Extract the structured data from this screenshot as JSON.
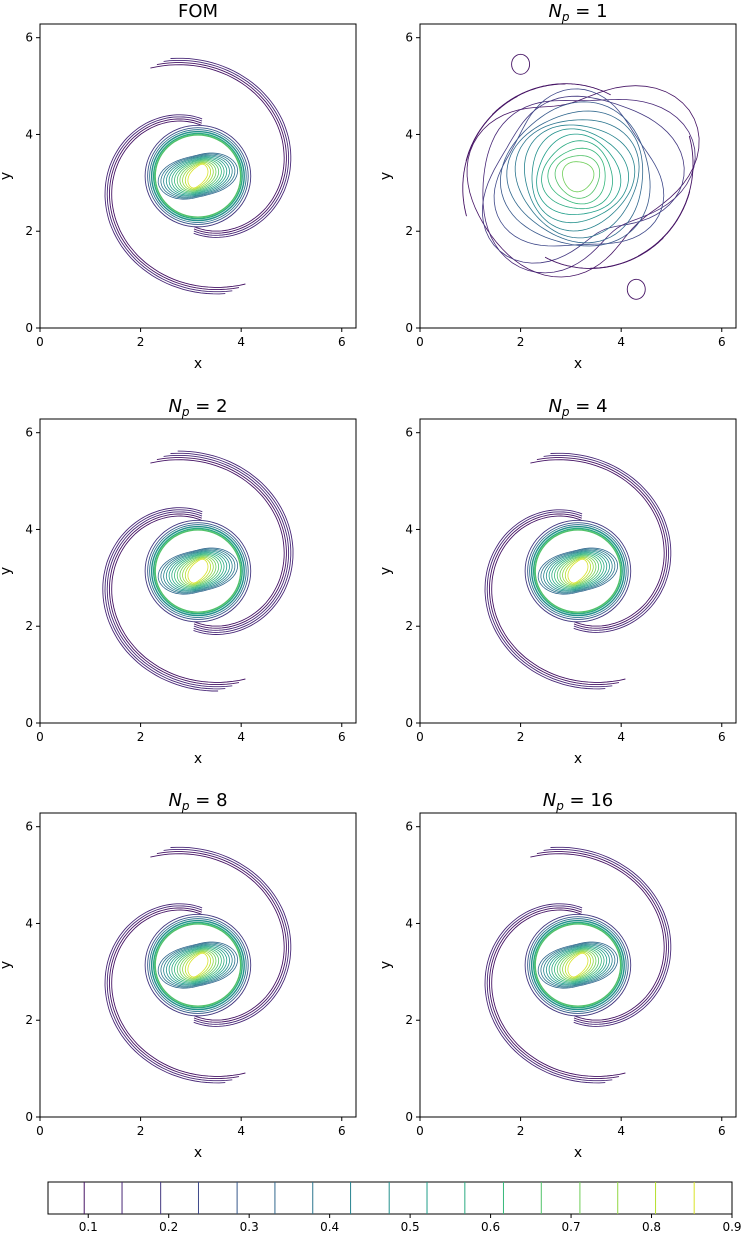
{
  "chart_data": {
    "type": "contour",
    "panels": [
      {
        "title": "FOM",
        "title_parts": null,
        "xlabel": "x",
        "ylabel": "y",
        "xlim": [
          0,
          6.283
        ],
        "ylim": [
          0,
          6.283
        ],
        "xticks": [
          "0",
          "2",
          "4",
          "6"
        ],
        "yticks": [
          "0",
          "2",
          "4",
          "6"
        ],
        "variant": "fom"
      },
      {
        "title": "",
        "title_parts": {
          "base": "N",
          "sub": "p",
          "rest": " = 1"
        },
        "xlabel": "x",
        "ylabel": "y",
        "xlim": [
          0,
          6.283
        ],
        "ylim": [
          0,
          6.283
        ],
        "xticks": [
          "0",
          "2",
          "4",
          "6"
        ],
        "yticks": [
          "0",
          "2",
          "4",
          "6"
        ],
        "variant": "np1"
      },
      {
        "title": "",
        "title_parts": {
          "base": "N",
          "sub": "p",
          "rest": " = 2"
        },
        "xlabel": "x",
        "ylabel": "y",
        "xlim": [
          0,
          6.283
        ],
        "ylim": [
          0,
          6.283
        ],
        "xticks": [
          "0",
          "2",
          "4",
          "6"
        ],
        "yticks": [
          "0",
          "2",
          "4",
          "6"
        ],
        "variant": "np2"
      },
      {
        "title": "",
        "title_parts": {
          "base": "N",
          "sub": "p",
          "rest": " = 4"
        },
        "xlabel": "x",
        "ylabel": "y",
        "xlim": [
          0,
          6.283
        ],
        "ylim": [
          0,
          6.283
        ],
        "xticks": [
          "0",
          "2",
          "4",
          "6"
        ],
        "yticks": [
          "0",
          "2",
          "4",
          "6"
        ],
        "variant": "np4"
      },
      {
        "title": "",
        "title_parts": {
          "base": "N",
          "sub": "p",
          "rest": " = 8"
        },
        "xlabel": "x",
        "ylabel": "y",
        "xlim": [
          0,
          6.283
        ],
        "ylim": [
          0,
          6.283
        ],
        "xticks": [
          "0",
          "2",
          "4",
          "6"
        ],
        "yticks": [
          "0",
          "2",
          "4",
          "6"
        ],
        "variant": "np8"
      },
      {
        "title": "",
        "title_parts": {
          "base": "N",
          "sub": "p",
          "rest": " = 16"
        },
        "xlabel": "x",
        "ylabel": "y",
        "xlim": [
          0,
          6.283
        ],
        "ylim": [
          0,
          6.283
        ],
        "xticks": [
          "0",
          "2",
          "4",
          "6"
        ],
        "yticks": [
          "0",
          "2",
          "4",
          "6"
        ],
        "variant": "np16"
      }
    ],
    "contour_levels": [
      0.095,
      0.142,
      0.19,
      0.237,
      0.285,
      0.332,
      0.379,
      0.426,
      0.474,
      0.521,
      0.568,
      0.616,
      0.663,
      0.711,
      0.758,
      0.805,
      0.853
    ],
    "colorbar": {
      "range": [
        0.05,
        0.9
      ],
      "ticks": [
        0.1,
        0.2,
        0.3,
        0.4,
        0.5,
        0.6,
        0.7,
        0.8,
        0.9
      ],
      "tick_labels": [
        "0.1",
        "0.2",
        "0.3",
        "0.4",
        "0.5",
        "0.6",
        "0.7",
        "0.8",
        "0.9"
      ],
      "orientation": "horizontal",
      "colormap": "viridis"
    },
    "colormap_stops": [
      "#440154",
      "#482878",
      "#3e4989",
      "#31688e",
      "#26828e",
      "#1f9e89",
      "#35b779",
      "#6ece58",
      "#b5de2b",
      "#fde725"
    ]
  }
}
